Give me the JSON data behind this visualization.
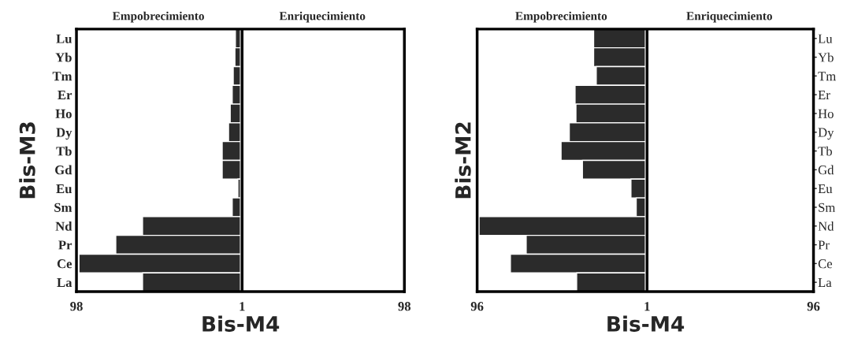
{
  "chart_data": [
    {
      "type": "bar",
      "orientation": "horizontal",
      "ylabel": "Bis-M3",
      "xlabel": "Bis-M4",
      "annotations": [
        "Empobrecimiento",
        "Enriquecimiento"
      ],
      "categories": [
        "Lu",
        "Yb",
        "Tm",
        "Er",
        "Ho",
        "Dy",
        "Tb",
        "Gd",
        "Eu",
        "Sm",
        "Nd",
        "Pr",
        "Ce",
        "La"
      ],
      "series": [
        {
          "color": "#2b2b2b",
          "values": [
            -3.0,
            -3.3,
            -4.3,
            -4.9,
            -6.1,
            -7.1,
            -10.9,
            -10.9,
            -1.5,
            -4.9,
            -58.5,
            -74.5,
            -96.5,
            -58.5
          ]
        }
      ],
      "xlim": [
        -98,
        98
      ],
      "xticks": [
        {
          "value": -98,
          "label": "98"
        },
        1,
        98
      ],
      "ref_lines": [
        {
          "axis": "x",
          "value": 1,
          "color": "#000000"
        }
      ]
    },
    {
      "type": "bar",
      "orientation": "horizontal",
      "ylabel": "Bis-M2",
      "xlabel": "Bis-M4",
      "annotations": [
        "Empobrecimiento",
        "Enriquecimiento"
      ],
      "categories": [
        "Lu",
        "Yb",
        "Tm",
        "Er",
        "Ho",
        "Dy",
        "Tb",
        "Gd",
        "Eu",
        "Sm",
        "Nd",
        "Pr",
        "Ce",
        "La"
      ],
      "series": [
        {
          "color": "#2b2b2b",
          "values": [
            -29.5,
            -29.5,
            -28.0,
            -40.1,
            -39.6,
            -43.4,
            -48.1,
            -35.9,
            -8.2,
            -5.2,
            -94.9,
            -68.0,
            -77.0,
            -39.2
          ]
        }
      ],
      "xlim": [
        -96,
        96
      ],
      "xticks": [
        {
          "value": -96,
          "label": "96"
        },
        1,
        96
      ],
      "ref_lines": [
        {
          "axis": "x",
          "value": 1,
          "color": "#000000"
        }
      ]
    }
  ]
}
